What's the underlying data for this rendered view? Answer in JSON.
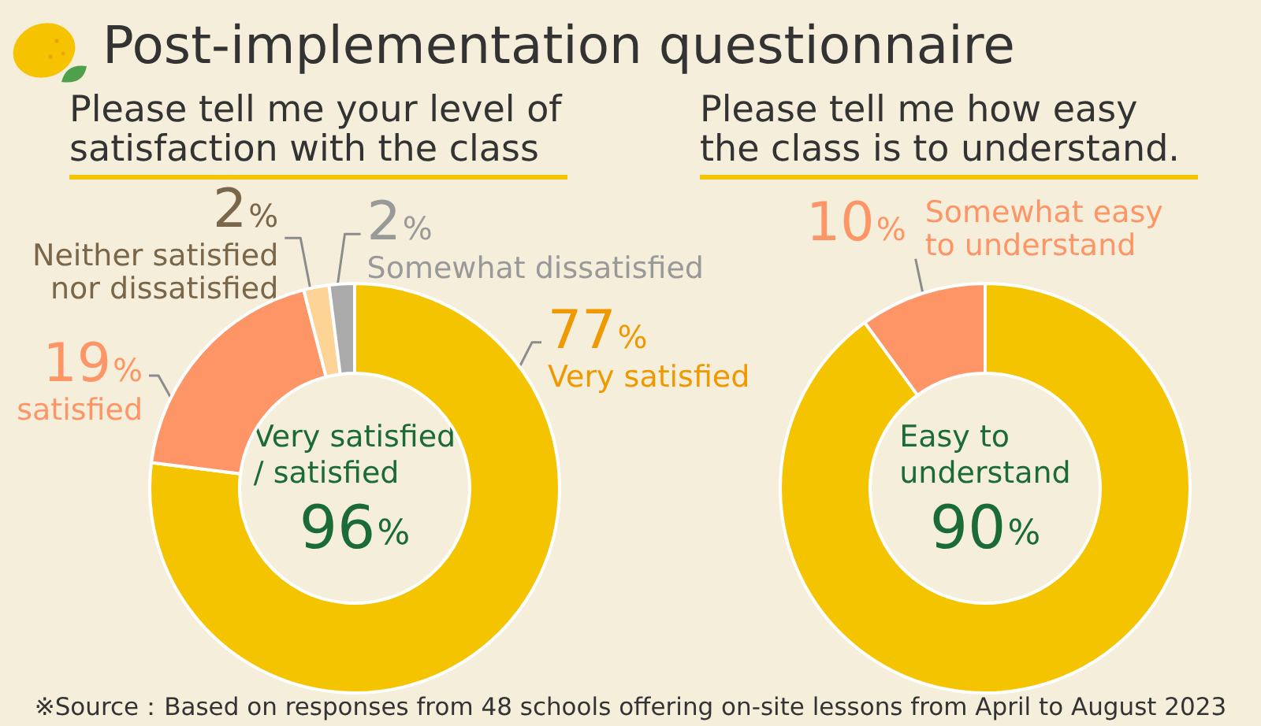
{
  "chart_data": [
    {
      "type": "donut",
      "title": "Post-implementation questionnaire",
      "subtitle": "Please tell me your level of satisfaction with the class",
      "categories": [
        "Very satisfied",
        "satisfied",
        "Neither satisfied nor dissatisfied",
        "Somewhat dissatisfied"
      ],
      "values": [
        77,
        19,
        2,
        2
      ],
      "colors": [
        "#f5c400",
        "#fd9566",
        "#fdd396",
        "#aaaaaa"
      ],
      "value_labels": [
        "77%",
        "19%",
        "2%",
        "2%"
      ],
      "annotations": [
        "Very satisfied / satisfied",
        "96%"
      ]
    },
    {
      "type": "donut",
      "subtitle": "Please tell me how easy the class is to understand.",
      "categories": [
        "Easy to understand",
        "Somewhat easy to understand"
      ],
      "values": [
        90,
        10
      ],
      "colors": [
        "#f5c400",
        "#fd9566"
      ],
      "value_labels": [
        "90%",
        "10%"
      ],
      "annotations": [
        "※Source：Based on responses from 48 schools offering on-site lessons from April to August 2023"
      ]
    }
  ]
}
